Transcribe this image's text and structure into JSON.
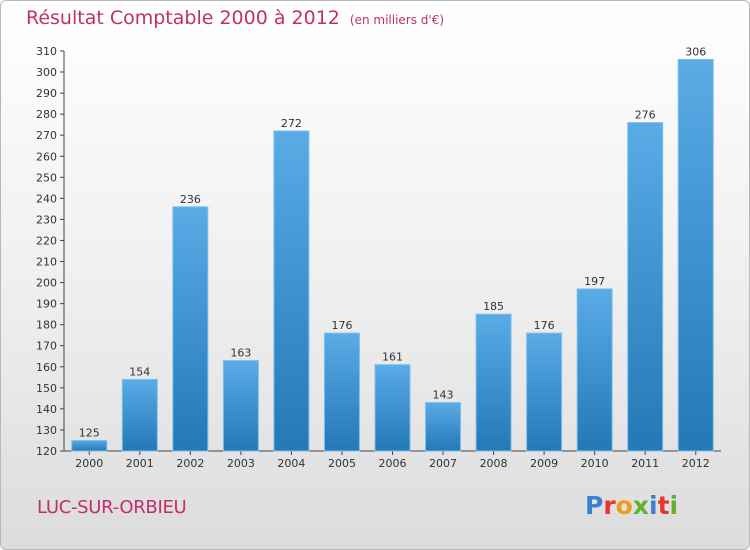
{
  "header": {
    "title": "Résultat Comptable 2000 à 2012",
    "unit": "(en milliers d'€)"
  },
  "footer": {
    "commune": "LUC-SUR-ORBIEU",
    "logo_text": "Proxiti"
  },
  "colors": {
    "title": "#c0306b",
    "bar_light": "#5aabe6",
    "bar_dark": "#2378b6",
    "logo": [
      "#3a7fd0",
      "#e8352f",
      "#f29a1e",
      "#62b22f",
      "#3a7fd0",
      "#e8352f",
      "#62b22f"
    ]
  },
  "chart_data": {
    "type": "bar",
    "title": "Résultat Comptable 2000 à 2012",
    "categories": [
      "2000",
      "2001",
      "2002",
      "2003",
      "2004",
      "2005",
      "2006",
      "2007",
      "2008",
      "2009",
      "2010",
      "2011",
      "2012"
    ],
    "values": [
      125,
      154,
      236,
      163,
      272,
      176,
      161,
      143,
      185,
      176,
      197,
      276,
      306
    ],
    "ylim": [
      120,
      310
    ],
    "yticks": [
      120,
      130,
      140,
      150,
      160,
      170,
      180,
      190,
      200,
      210,
      220,
      230,
      240,
      250,
      260,
      270,
      280,
      290,
      300,
      310
    ],
    "grid": false,
    "legend": "none"
  }
}
